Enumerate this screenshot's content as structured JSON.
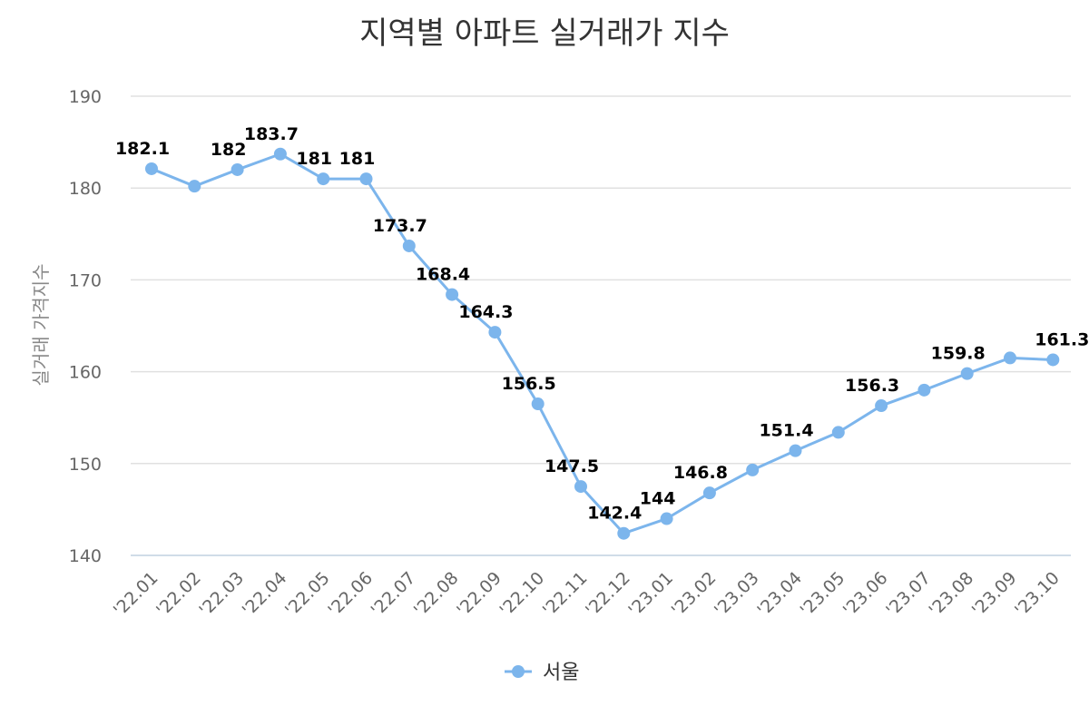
{
  "chart_data": {
    "type": "line",
    "title": "지역별 아파트 실거래가 지수",
    "xlabel": "",
    "ylabel": "실거래 가격지수",
    "ylim": [
      140,
      190
    ],
    "yticks": [
      140,
      150,
      160,
      170,
      180,
      190
    ],
    "grid": true,
    "legend_position": "bottom",
    "categories": [
      "'22.01",
      "'22.02",
      "'22.03",
      "'22.04",
      "'22.05",
      "'22.06",
      "'22.07",
      "'22.08",
      "'22.09",
      "'22.10",
      "'22.11",
      "'22.12",
      "'23.01",
      "'23.02",
      "'23.03",
      "'23.04",
      "'23.05",
      "'23.06",
      "'23.07",
      "'23.08",
      "'23.09",
      "'23.10"
    ],
    "series": [
      {
        "name": "서울",
        "color": "#7cb5ec",
        "values": [
          182.1,
          180.2,
          182,
          183.7,
          181,
          181,
          173.7,
          168.4,
          164.3,
          156.5,
          147.5,
          142.4,
          144,
          146.8,
          149.3,
          151.4,
          153.4,
          156.3,
          158,
          159.8,
          161.5,
          161.3
        ],
        "data_labels": [
          {
            "index": 0,
            "text": "182.1"
          },
          {
            "index": 2,
            "text": "182"
          },
          {
            "index": 3,
            "text": "183.7"
          },
          {
            "index": 4,
            "text": "181"
          },
          {
            "index": 5,
            "text": "181"
          },
          {
            "index": 6,
            "text": "173.7"
          },
          {
            "index": 7,
            "text": "168.4"
          },
          {
            "index": 8,
            "text": "164.3"
          },
          {
            "index": 9,
            "text": "156.5"
          },
          {
            "index": 10,
            "text": "147.5"
          },
          {
            "index": 11,
            "text": "142.4"
          },
          {
            "index": 12,
            "text": "144"
          },
          {
            "index": 13,
            "text": "146.8"
          },
          {
            "index": 15,
            "text": "151.4"
          },
          {
            "index": 17,
            "text": "156.3"
          },
          {
            "index": 19,
            "text": "159.8"
          },
          {
            "index": 21,
            "text": "161.3"
          }
        ]
      }
    ]
  }
}
